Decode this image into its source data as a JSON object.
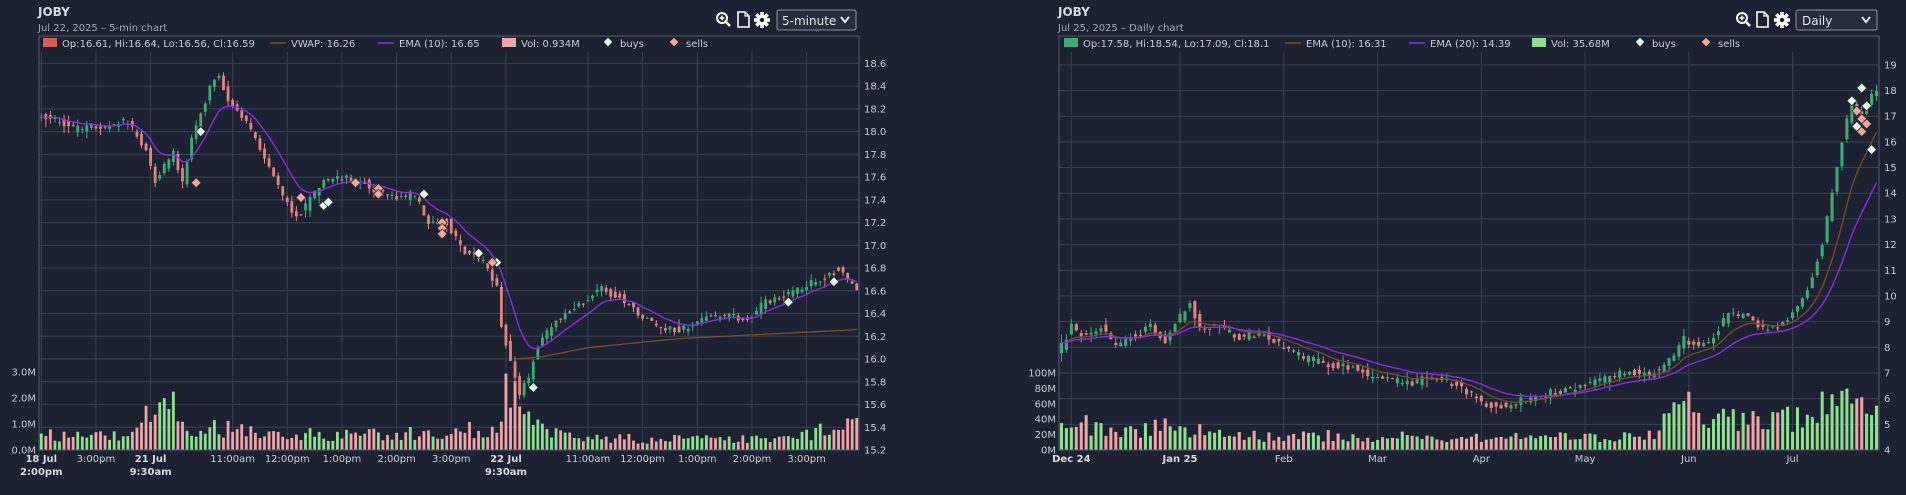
{
  "colors": {
    "up": "#3cab77",
    "down": "#e0837f",
    "vol_up": "#8ee08e",
    "vol_down": "#f0a3a8",
    "ema_purple": "#8a2be2",
    "brown": "#7a4a2a",
    "buy": "#e6ffe6",
    "sell": "#f4a796"
  },
  "icons": [
    "zoom-in-icon",
    "document-icon",
    "gear-icon",
    "chevron-down-icon"
  ],
  "chart_data": [
    {
      "type": "candlestick",
      "title": "JOBY",
      "subtitle": "Jul 22, 2025 – 5-min chart",
      "interval": "5-minute",
      "legend": {
        "ohlc": "Op:16.61, Hi:16.64, Lo:16.56, Cl:16.59",
        "vwap": "VWAP: 16.26",
        "ema": "EMA (10): 16.65",
        "vol": "Vol: 0.934M",
        "buys": "buys",
        "sells": "sells"
      },
      "ylim": [
        15.2,
        18.7
      ],
      "yticks": [
        "18.6",
        "18.4",
        "18.2",
        "18.0",
        "17.8",
        "17.6",
        "17.4",
        "17.2",
        "17.0",
        "16.8",
        "16.6",
        "16.4",
        "16.2",
        "16.0",
        "15.8",
        "15.6",
        "15.4",
        "15.2"
      ],
      "vol_ticks": [
        "3.0M",
        "2.0M",
        "1.0M",
        "0.0M"
      ],
      "vol_max": 3.0,
      "x_ticks": [
        {
          "t": 0,
          "l1": "18 Jul",
          "l2": "2:00pm",
          "bold": true
        },
        {
          "t": 12,
          "l1": "3:00pm",
          "l2": "",
          "bold": false
        },
        {
          "t": 24,
          "l1": "21 Jul",
          "l2": "9:30am",
          "bold": true
        },
        {
          "t": 42,
          "l1": "11:00am",
          "l2": "",
          "bold": false
        },
        {
          "t": 54,
          "l1": "12:00pm",
          "l2": "",
          "bold": false
        },
        {
          "t": 66,
          "l1": "1:00pm",
          "l2": "",
          "bold": false
        },
        {
          "t": 78,
          "l1": "2:00pm",
          "l2": "",
          "bold": false
        },
        {
          "t": 90,
          "l1": "3:00pm",
          "l2": "",
          "bold": false
        },
        {
          "t": 102,
          "l1": "22 Jul",
          "l2": "9:30am",
          "bold": true
        },
        {
          "t": 120,
          "l1": "11:00am",
          "l2": "",
          "bold": false
        },
        {
          "t": 132,
          "l1": "12:00pm",
          "l2": "",
          "bold": false
        },
        {
          "t": 144,
          "l1": "1:00pm",
          "l2": "",
          "bold": false
        },
        {
          "t": 156,
          "l1": "2:00pm",
          "l2": "",
          "bold": false
        },
        {
          "t": 168,
          "l1": "3:00pm",
          "l2": "",
          "bold": false
        }
      ],
      "n": 180,
      "anchors": [
        [
          0,
          18.12
        ],
        [
          3,
          18.14
        ],
        [
          8,
          18.03
        ],
        [
          14,
          18.05
        ],
        [
          20,
          18.08
        ],
        [
          24,
          17.85
        ],
        [
          26,
          17.55
        ],
        [
          28,
          17.7
        ],
        [
          30,
          17.8
        ],
        [
          32,
          17.55
        ],
        [
          34,
          17.95
        ],
        [
          36,
          18.15
        ],
        [
          38,
          18.4
        ],
        [
          40,
          18.5
        ],
        [
          42,
          18.25
        ],
        [
          44,
          18.2
        ],
        [
          48,
          17.95
        ],
        [
          52,
          17.6
        ],
        [
          56,
          17.3
        ],
        [
          58,
          17.28
        ],
        [
          61,
          17.45
        ],
        [
          63,
          17.55
        ],
        [
          66,
          17.6
        ],
        [
          72,
          17.55
        ],
        [
          76,
          17.45
        ],
        [
          80,
          17.42
        ],
        [
          83,
          17.45
        ],
        [
          86,
          17.2
        ],
        [
          90,
          17.2
        ],
        [
          94,
          16.95
        ],
        [
          98,
          16.85
        ],
        [
          101,
          16.65
        ],
        [
          102,
          16.3
        ],
        [
          104,
          15.95
        ],
        [
          106,
          15.7
        ],
        [
          108,
          15.85
        ],
        [
          110,
          16.1
        ],
        [
          113,
          16.3
        ],
        [
          116,
          16.4
        ],
        [
          120,
          16.5
        ],
        [
          124,
          16.62
        ],
        [
          128,
          16.55
        ],
        [
          132,
          16.4
        ],
        [
          136,
          16.3
        ],
        [
          140,
          16.25
        ],
        [
          144,
          16.3
        ],
        [
          148,
          16.38
        ],
        [
          152,
          16.38
        ],
        [
          156,
          16.35
        ],
        [
          160,
          16.5
        ],
        [
          164,
          16.55
        ],
        [
          168,
          16.63
        ],
        [
          172,
          16.7
        ],
        [
          176,
          16.8
        ],
        [
          180,
          16.62
        ]
      ],
      "vwap_anchors": [
        [
          104,
          16.0
        ],
        [
          110,
          16.02
        ],
        [
          120,
          16.1
        ],
        [
          140,
          16.18
        ],
        [
          160,
          16.22
        ],
        [
          180,
          16.26
        ]
      ],
      "volume_anchors": [
        [
          0,
          0.6
        ],
        [
          20,
          0.5
        ],
        [
          24,
          1.4
        ],
        [
          28,
          1.9
        ],
        [
          32,
          0.9
        ],
        [
          40,
          0.8
        ],
        [
          60,
          0.6
        ],
        [
          80,
          0.6
        ],
        [
          100,
          0.9
        ],
        [
          102,
          2.6
        ],
        [
          105,
          1.5
        ],
        [
          108,
          1.0
        ],
        [
          115,
          0.5
        ],
        [
          140,
          0.4
        ],
        [
          160,
          0.4
        ],
        [
          170,
          0.7
        ],
        [
          180,
          0.9
        ]
      ],
      "buys": [
        [
          35,
          18.0
        ],
        [
          62,
          17.35
        ],
        [
          63,
          17.38
        ],
        [
          84,
          17.45
        ],
        [
          96,
          16.93
        ],
        [
          100,
          16.85
        ],
        [
          108,
          15.75
        ],
        [
          164,
          16.5
        ],
        [
          174,
          16.68
        ]
      ],
      "sells": [
        [
          34,
          17.55
        ],
        [
          57,
          17.42
        ],
        [
          69,
          17.55
        ],
        [
          74,
          17.5
        ],
        [
          74,
          17.45
        ],
        [
          88,
          17.2
        ],
        [
          88,
          17.15
        ],
        [
          88,
          17.1
        ],
        [
          99,
          16.85
        ]
      ]
    },
    {
      "type": "candlestick",
      "title": "JOBY",
      "subtitle": "Jul 25, 2025 – Daily chart",
      "interval": "Daily",
      "legend": {
        "ohlc": "Op:17.58, Hi:18.54, Lo:17.09, Cl:18.1",
        "ema10": "EMA (10): 16.31",
        "ema20": "EMA (20): 14.39",
        "vol": "Vol: 35.68M",
        "buys": "buys",
        "sells": "sells"
      },
      "ylim": [
        4,
        19.5
      ],
      "yticks": [
        "19",
        "18",
        "17",
        "16",
        "15",
        "14",
        "13",
        "12",
        "11",
        "10",
        "9",
        "8",
        "7",
        "6",
        "5",
        "4"
      ],
      "vol_ticks": [
        "100M",
        "80M",
        "60M",
        "40M",
        "20M",
        "0M"
      ],
      "vol_max": 100,
      "x_ticks": [
        {
          "t": 2,
          "l1": "Dec 24",
          "l2": "",
          "bold": true
        },
        {
          "t": 24,
          "l1": "Jan 25",
          "l2": "",
          "bold": true
        },
        {
          "t": 45,
          "l1": "Feb",
          "l2": "",
          "bold": false
        },
        {
          "t": 64,
          "l1": "Mar",
          "l2": "",
          "bold": false
        },
        {
          "t": 85,
          "l1": "Apr",
          "l2": "",
          "bold": false
        },
        {
          "t": 106,
          "l1": "May",
          "l2": "",
          "bold": false
        },
        {
          "t": 127,
          "l1": "Jun",
          "l2": "",
          "bold": false
        },
        {
          "t": 148,
          "l1": "Jul",
          "l2": "",
          "bold": false
        }
      ],
      "n": 166,
      "anchors": [
        [
          0,
          7.6
        ],
        [
          3,
          8.8
        ],
        [
          6,
          8.5
        ],
        [
          9,
          8.7
        ],
        [
          12,
          8.0
        ],
        [
          15,
          8.4
        ],
        [
          19,
          8.8
        ],
        [
          22,
          8.2
        ],
        [
          25,
          9.2
        ],
        [
          27,
          9.7
        ],
        [
          29,
          8.8
        ],
        [
          33,
          8.8
        ],
        [
          37,
          8.4
        ],
        [
          42,
          8.5
        ],
        [
          46,
          8.0
        ],
        [
          50,
          7.6
        ],
        [
          55,
          7.3
        ],
        [
          60,
          7.2
        ],
        [
          64,
          6.8
        ],
        [
          68,
          6.7
        ],
        [
          72,
          6.6
        ],
        [
          76,
          6.8
        ],
        [
          80,
          6.6
        ],
        [
          84,
          6.2
        ],
        [
          88,
          5.7
        ],
        [
          92,
          5.8
        ],
        [
          96,
          6.0
        ],
        [
          100,
          6.2
        ],
        [
          104,
          6.4
        ],
        [
          108,
          6.6
        ],
        [
          112,
          6.8
        ],
        [
          116,
          7.1
        ],
        [
          120,
          6.8
        ],
        [
          124,
          7.5
        ],
        [
          127,
          8.3
        ],
        [
          130,
          8.0
        ],
        [
          133,
          8.4
        ],
        [
          136,
          9.3
        ],
        [
          140,
          9.2
        ],
        [
          143,
          8.7
        ],
        [
          146,
          8.8
        ],
        [
          149,
          9.3
        ],
        [
          152,
          10.3
        ],
        [
          155,
          12.0
        ],
        [
          157,
          14.0
        ],
        [
          159,
          16.0
        ],
        [
          161,
          17.5
        ],
        [
          163,
          17.0
        ],
        [
          166,
          18.1
        ]
      ],
      "volume_anchors": [
        [
          0,
          25
        ],
        [
          5,
          32
        ],
        [
          10,
          22
        ],
        [
          20,
          28
        ],
        [
          25,
          30
        ],
        [
          30,
          22
        ],
        [
          40,
          18
        ],
        [
          60,
          18
        ],
        [
          80,
          15
        ],
        [
          100,
          16
        ],
        [
          120,
          18
        ],
        [
          126,
          90
        ],
        [
          128,
          50
        ],
        [
          135,
          40
        ],
        [
          145,
          35
        ],
        [
          150,
          45
        ],
        [
          155,
          55
        ],
        [
          160,
          70
        ],
        [
          163,
          55
        ],
        [
          166,
          50
        ]
      ],
      "buys": [
        [
          160,
          17.6
        ],
        [
          161,
          16.6
        ],
        [
          162,
          18.1
        ],
        [
          163,
          17.4
        ],
        [
          164,
          15.7
        ]
      ],
      "sells": [
        [
          161,
          17.2
        ],
        [
          162,
          16.9
        ],
        [
          162,
          16.4
        ],
        [
          163,
          16.7
        ]
      ]
    }
  ]
}
